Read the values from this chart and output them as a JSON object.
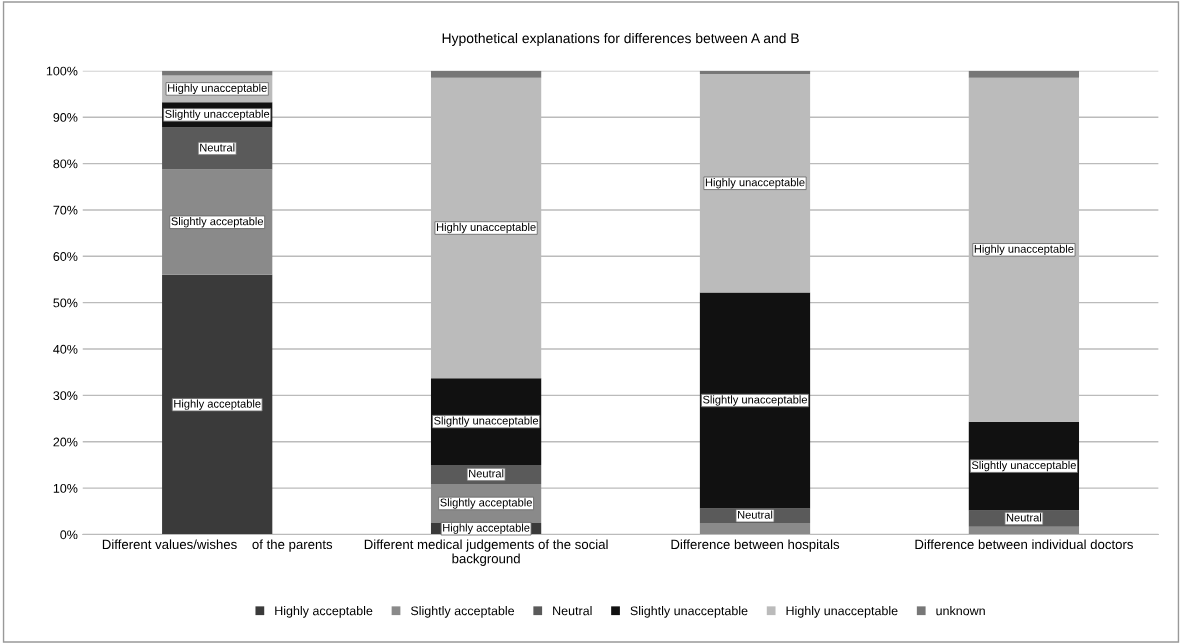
{
  "chart_data": {
    "type": "bar",
    "stacked": true,
    "title": "Hypothetical explanations for differences between A and B",
    "categories": [
      "Different values/wishes    of the parents",
      "Different medical judgements of the social background",
      "Difference between hospitals",
      "Difference between individual doctors"
    ],
    "series": [
      {
        "name": "Highly acceptable",
        "color": "#3a3a3a",
        "values": [
          56,
          2.5,
          0,
          0
        ],
        "value_labels": [
          "Highly acceptable",
          "Highly acceptable",
          null,
          null
        ]
      },
      {
        "name": "Slightly acceptable",
        "color": "#8a8a8a",
        "values": [
          22.7,
          8.4,
          2.5,
          1.7
        ],
        "value_labels": [
          "Slightly acceptable",
          "Slightly acceptable",
          null,
          null
        ]
      },
      {
        "name": "Neutral",
        "color": "#5a5a5a",
        "values": [
          9.1,
          4.1,
          3.1,
          3.5
        ],
        "value_labels": [
          "Neutral",
          "Neutral",
          "Neutral",
          "Neutral"
        ]
      },
      {
        "name": "Slightly unacceptable",
        "color": "#111111",
        "values": [
          5.4,
          18.7,
          46.6,
          19.1
        ],
        "value_labels": [
          "Slightly unacceptable",
          "Slightly unacceptable",
          "Slightly unacceptable",
          "Slightly unacceptable"
        ]
      },
      {
        "name": "Highly unacceptable",
        "color": "#bbbbbb",
        "values": [
          5.8,
          64.8,
          47.1,
          74.2
        ],
        "value_labels": [
          "Highly unacceptable",
          "Highly unacceptable",
          "Highly unacceptable",
          "Highly unacceptable"
        ]
      },
      {
        "name": "unknown",
        "color": "#777777",
        "values": [
          1,
          1.5,
          0.7,
          1.5
        ]
      }
    ],
    "ylim": [
      0,
      100
    ],
    "yticks": [
      {
        "value": 0,
        "label": "0%"
      },
      {
        "value": 10,
        "label": "10%"
      },
      {
        "value": 20,
        "label": "20%"
      },
      {
        "value": 30,
        "label": "30%"
      },
      {
        "value": 40,
        "label": "40%"
      },
      {
        "value": 50,
        "label": "50%"
      },
      {
        "value": 60,
        "label": "60%"
      },
      {
        "value": 70,
        "label": "70%"
      },
      {
        "value": 80,
        "label": "80%"
      },
      {
        "value": 90,
        "label": "90%"
      },
      {
        "value": 100,
        "label": "100%"
      }
    ],
    "grid": "y",
    "legend": "bottom"
  }
}
